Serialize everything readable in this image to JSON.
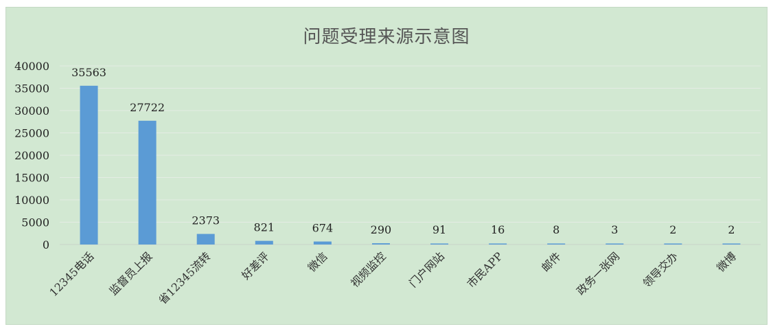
{
  "chart_data": {
    "type": "bar",
    "title": "问题受理来源示意图",
    "xlabel": "",
    "ylabel": "",
    "categories": [
      "12345电话",
      "监督员上报",
      "省12345流转",
      "好差评",
      "微信",
      "视频监控",
      "门户网站",
      "市民APP",
      "邮件",
      "政务一张网",
      "领导交办",
      "微博"
    ],
    "values": [
      35563,
      27722,
      2373,
      821,
      674,
      290,
      91,
      16,
      8,
      3,
      2,
      2
    ],
    "ylim": [
      0,
      40000
    ],
    "yticks": [
      0,
      5000,
      10000,
      15000,
      20000,
      25000,
      30000,
      35000,
      40000
    ],
    "grid": true,
    "legend": "none",
    "colors": {
      "bar": "#5b9bd5",
      "background": "#d2e8d2",
      "grid": "#e4ece4"
    }
  }
}
